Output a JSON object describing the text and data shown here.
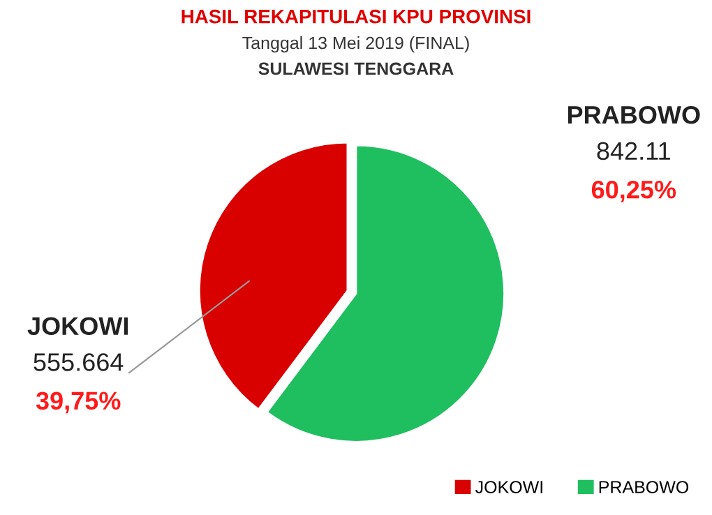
{
  "chart_data": {
    "type": "pie",
    "title": "HASIL REKAPITULASI KPU PROVINSI",
    "subtitle": "Tanggal 13 Mei 2019 (FINAL)",
    "annotations": [
      "SULAWESI TENGGARA",
      "555.664",
      "842.11"
    ],
    "categories": [
      "JOKOWI",
      "PRABOWO"
    ],
    "values": [
      39.75,
      60.25
    ],
    "colors": [
      "#d90000",
      "#1fbf5f"
    ],
    "value_labels": [
      "39,75%",
      "60,25%"
    ],
    "legend": "bottom right"
  }
}
